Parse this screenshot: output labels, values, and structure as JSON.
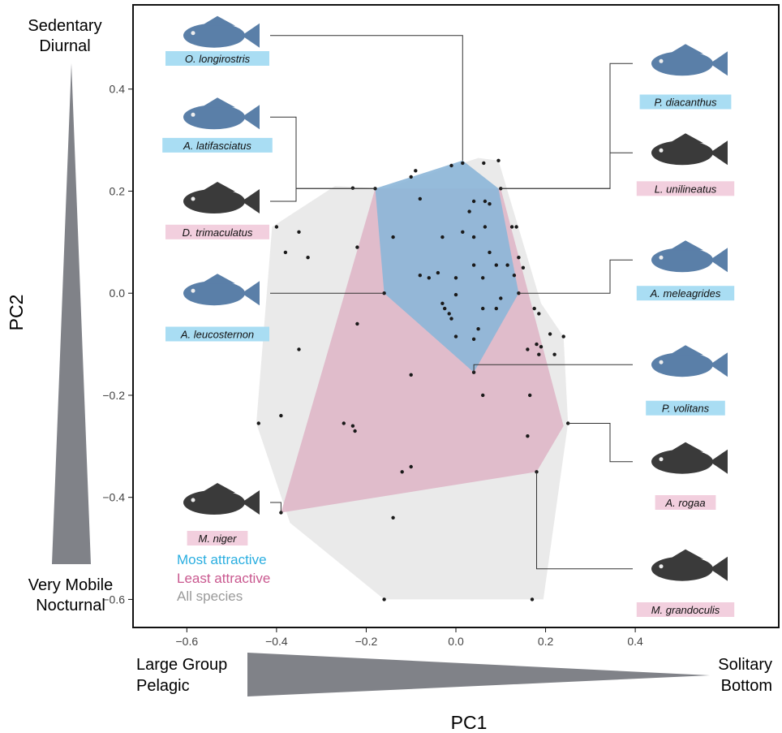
{
  "chart_data": {
    "type": "scatter",
    "xlabel": "PC1",
    "ylabel": "PC2",
    "xlim": [
      -0.72,
      0.72
    ],
    "ylim": [
      -0.655,
      0.565
    ],
    "xticks": [
      "−0.6",
      "−0.4",
      "−0.2",
      "0.0",
      "0.2",
      "0.4"
    ],
    "xtick_values": [
      -0.6,
      -0.4,
      -0.2,
      0.0,
      0.2,
      0.4
    ],
    "yticks": [
      "−0.6",
      "−0.4",
      "−0.2",
      "0.0",
      "0.2",
      "0.4"
    ],
    "ytick_values": [
      -0.6,
      -0.4,
      -0.2,
      0.0,
      0.2,
      0.4
    ],
    "y_axis_top_label": [
      "Sedentary",
      "Diurnal"
    ],
    "y_axis_bottom_label": [
      "Very Mobile",
      "Nocturnal"
    ],
    "x_axis_left_label": [
      "Large Group",
      "Pelagic"
    ],
    "x_axis_right_label": [
      "Solitary",
      "Bottom"
    ],
    "legend": {
      "placement": "bottom-left",
      "entries": [
        {
          "label": "Most attractive",
          "color": "#2aaee0"
        },
        {
          "label": "Least attractive",
          "color": "#c9588f"
        },
        {
          "label": "All species",
          "color": "#9a9a9a"
        }
      ]
    },
    "hulls": {
      "all_species": {
        "color": "#e6e6e6",
        "points": [
          [
            -0.16,
            0.205
          ],
          [
            0.05,
            0.265
          ],
          [
            0.095,
            0.26
          ],
          [
            0.19,
            -0.02
          ],
          [
            0.24,
            -0.085
          ],
          [
            0.25,
            -0.255
          ],
          [
            0.195,
            -0.6
          ],
          [
            -0.16,
            -0.6
          ],
          [
            -0.37,
            -0.45
          ],
          [
            -0.445,
            -0.255
          ],
          [
            -0.41,
            0.13
          ],
          [
            -0.27,
            0.21
          ]
        ]
      },
      "least_attractive": {
        "color": "#dfb7c8",
        "points": [
          [
            -0.18,
            0.205
          ],
          [
            0.1,
            0.205
          ],
          [
            0.24,
            -0.26
          ],
          [
            0.18,
            -0.35
          ],
          [
            -0.39,
            -0.43
          ]
        ]
      },
      "most_attractive": {
        "color": "#8cb6d8",
        "points": [
          [
            -0.18,
            0.205
          ],
          [
            0.015,
            0.26
          ],
          [
            0.095,
            0.205
          ],
          [
            0.14,
            0.0
          ],
          [
            0.04,
            -0.155
          ],
          [
            -0.16,
            0.0
          ]
        ]
      }
    },
    "points": [
      [
        0.015,
        0.255
      ],
      [
        0.095,
        0.26
      ],
      [
        0.062,
        0.255
      ],
      [
        -0.09,
        0.24
      ],
      [
        -0.1,
        0.228
      ],
      [
        -0.01,
        0.25
      ],
      [
        -0.23,
        0.206
      ],
      [
        -0.18,
        0.205
      ],
      [
        0.1,
        0.205
      ],
      [
        -0.08,
        0.185
      ],
      [
        0.065,
        0.18
      ],
      [
        0.04,
        0.18
      ],
      [
        0.075,
        0.175
      ],
      [
        0.03,
        0.16
      ],
      [
        -0.4,
        0.13
      ],
      [
        0.135,
        0.13
      ],
      [
        0.065,
        0.13
      ],
      [
        0.125,
        0.13
      ],
      [
        0.015,
        0.12
      ],
      [
        -0.35,
        0.12
      ],
      [
        -0.14,
        0.11
      ],
      [
        -0.03,
        0.11
      ],
      [
        0.04,
        0.11
      ],
      [
        -0.22,
        0.09
      ],
      [
        0.075,
        0.08
      ],
      [
        -0.38,
        0.08
      ],
      [
        -0.33,
        0.07
      ],
      [
        0.14,
        0.07
      ],
      [
        0.04,
        0.055
      ],
      [
        0.115,
        0.055
      ],
      [
        0.09,
        0.055
      ],
      [
        0.15,
        0.05
      ],
      [
        -0.04,
        0.04
      ],
      [
        0.13,
        0.035
      ],
      [
        -0.08,
        0.035
      ],
      [
        -0.06,
        0.03
      ],
      [
        0.0,
        0.03
      ],
      [
        0.06,
        0.03
      ],
      [
        0.0,
        -0.003
      ],
      [
        -0.16,
        0.0
      ],
      [
        0.14,
        0.0
      ],
      [
        0.1,
        -0.01
      ],
      [
        -0.03,
        -0.02
      ],
      [
        -0.025,
        -0.03
      ],
      [
        0.175,
        -0.03
      ],
      [
        0.06,
        -0.03
      ],
      [
        0.09,
        -0.03
      ],
      [
        -0.015,
        -0.04
      ],
      [
        -0.01,
        -0.05
      ],
      [
        0.185,
        -0.04
      ],
      [
        -0.22,
        -0.06
      ],
      [
        0.05,
        -0.07
      ],
      [
        0.21,
        -0.08
      ],
      [
        0.24,
        -0.085
      ],
      [
        0.0,
        -0.085
      ],
      [
        0.04,
        -0.09
      ],
      [
        0.18,
        -0.1
      ],
      [
        0.19,
        -0.105
      ],
      [
        0.185,
        -0.12
      ],
      [
        -0.35,
        -0.11
      ],
      [
        0.16,
        -0.11
      ],
      [
        0.22,
        -0.12
      ],
      [
        -0.1,
        -0.16
      ],
      [
        0.04,
        -0.155
      ],
      [
        0.165,
        -0.2
      ],
      [
        0.06,
        -0.2
      ],
      [
        -0.39,
        -0.24
      ],
      [
        0.25,
        -0.255
      ],
      [
        -0.44,
        -0.255
      ],
      [
        -0.25,
        -0.255
      ],
      [
        -0.23,
        -0.26
      ],
      [
        -0.225,
        -0.27
      ],
      [
        0.16,
        -0.28
      ],
      [
        -0.1,
        -0.34
      ],
      [
        -0.12,
        -0.35
      ],
      [
        0.18,
        -0.35
      ],
      [
        -0.39,
        -0.43
      ],
      [
        -0.14,
        -0.44
      ],
      [
        -0.16,
        -0.6
      ],
      [
        0.17,
        -0.6
      ]
    ],
    "species": [
      {
        "name": "O. longirostris",
        "group": "most",
        "point": [
          0.015,
          0.26
        ],
        "side": "left",
        "label_y": 0.46,
        "fish_y": 0.505
      },
      {
        "name": "A. latifasciatus",
        "group": "most",
        "point": [
          -0.18,
          0.205
        ],
        "side": "left",
        "label_y": 0.29,
        "fish_y": 0.345
      },
      {
        "name": "D. trimaculatus",
        "group": "least",
        "point": [
          -0.18,
          0.205
        ],
        "side": "left",
        "label_y": 0.12,
        "fish_y": 0.18
      },
      {
        "name": "A. leucosternon",
        "group": "most",
        "point": [
          -0.16,
          0.0
        ],
        "side": "left",
        "label_y": -0.08,
        "fish_y": 0.0
      },
      {
        "name": "M. niger",
        "group": "least",
        "point": [
          -0.39,
          -0.43
        ],
        "side": "left",
        "label_y": -0.48,
        "fish_y": -0.41
      },
      {
        "name": "P. diacanthus",
        "group": "most",
        "point": [
          0.1,
          0.205
        ],
        "side": "right",
        "label_y": 0.375,
        "fish_y": 0.45
      },
      {
        "name": "L. unilineatus",
        "group": "least",
        "point": [
          0.1,
          0.205
        ],
        "side": "right",
        "label_y": 0.205,
        "fish_y": 0.275
      },
      {
        "name": "A. meleagrides",
        "group": "most",
        "point": [
          0.14,
          0.0
        ],
        "side": "right",
        "label_y": 0.0,
        "fish_y": 0.065
      },
      {
        "name": "P. volitans",
        "group": "most",
        "point": [
          0.04,
          -0.155
        ],
        "side": "right",
        "label_y": -0.225,
        "fish_y": -0.14
      },
      {
        "name": "A. rogaa",
        "group": "least",
        "point": [
          0.25,
          -0.255
        ],
        "side": "right",
        "label_y": -0.41,
        "fish_y": -0.33
      },
      {
        "name": "M. grandoculis",
        "group": "least",
        "point": [
          0.18,
          -0.35
        ],
        "side": "right",
        "label_y": -0.62,
        "fish_y": -0.54
      }
    ]
  }
}
